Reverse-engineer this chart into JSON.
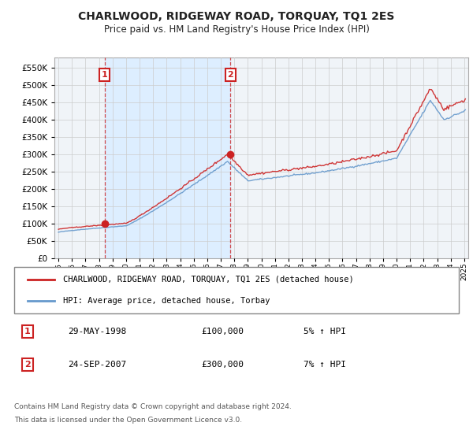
{
  "title": "CHARLWOOD, RIDGEWAY ROAD, TORQUAY, TQ1 2ES",
  "subtitle": "Price paid vs. HM Land Registry's House Price Index (HPI)",
  "legend_line1": "CHARLWOOD, RIDGEWAY ROAD, TORQUAY, TQ1 2ES (detached house)",
  "legend_line2": "HPI: Average price, detached house, Torbay",
  "footer1": "Contains HM Land Registry data © Crown copyright and database right 2024.",
  "footer2": "This data is licensed under the Open Government Licence v3.0.",
  "transaction1_date": "29-MAY-1998",
  "transaction1_price": "£100,000",
  "transaction1_hpi": "5% ↑ HPI",
  "transaction2_date": "24-SEP-2007",
  "transaction2_price": "£300,000",
  "transaction2_hpi": "7% ↑ HPI",
  "red_color": "#cc2222",
  "blue_color": "#6699cc",
  "shade_color": "#ddeeff",
  "grid_color": "#cccccc",
  "bg_color": "#ffffff",
  "plot_bg_color": "#f0f4f8",
  "ylim": [
    0,
    580000
  ],
  "yticks": [
    0,
    50000,
    100000,
    150000,
    200000,
    250000,
    300000,
    350000,
    400000,
    450000,
    500000,
    550000
  ],
  "transaction1_x": 1998.41,
  "transaction1_y": 100000,
  "transaction2_x": 2007.72,
  "transaction2_y": 300000,
  "xlim_left": 1994.7,
  "xlim_right": 2025.3
}
